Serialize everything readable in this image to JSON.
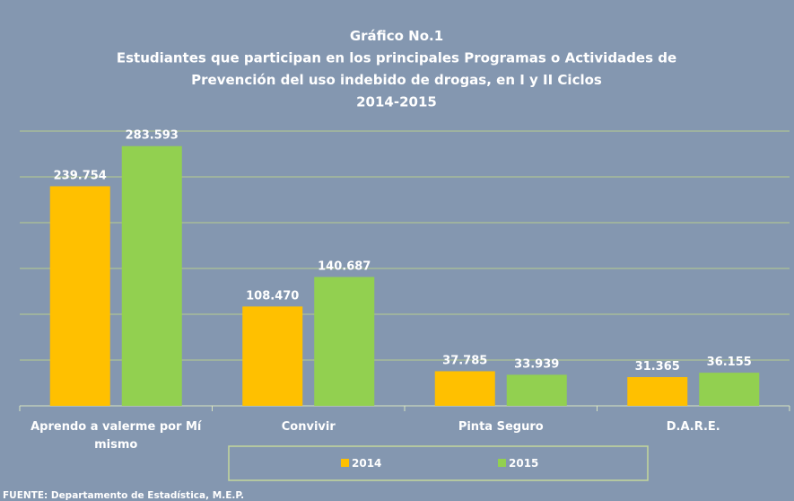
{
  "chart_data": {
    "type": "bar",
    "title": [
      "Gráfico No.1",
      "Estudiantes que participan en los principales Programas o Actividades de",
      "Prevención del uso indebido de drogas, en I y II Ciclos",
      "2014-2015"
    ],
    "categories": [
      "Aprendo a valerme por Mí mismo",
      "Convivir",
      "Pinta Seguro",
      "D.A.R.E."
    ],
    "series": [
      {
        "name": "2014",
        "color": "#ffc000",
        "values": [
          239754,
          108470,
          37785,
          31365
        ],
        "value_labels": [
          "239.754",
          "108.470",
          "37.785",
          "31.365"
        ]
      },
      {
        "name": "2015",
        "color": "#92d050",
        "values": [
          283593,
          140687,
          33939,
          36155
        ],
        "value_labels": [
          "283.593",
          "140.687",
          "33.939",
          "36.155"
        ]
      }
    ],
    "ylim": [
      0,
      300000
    ],
    "yticks": [
      0,
      50000,
      100000,
      150000,
      200000,
      250000,
      300000
    ],
    "grid": true,
    "legend": "bottom",
    "source": "FUENTE: Departamento de Estadística, M.E.P."
  }
}
